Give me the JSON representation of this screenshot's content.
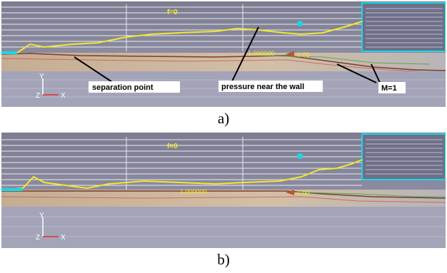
{
  "panel_a": {
    "top_marker": "f=0",
    "scale_label": "1.000000",
    "scale_label_right": "0.00",
    "axis_y": "Y",
    "axis_z": "Z",
    "axis_x": "X",
    "annotations": {
      "separation_point": "separation point",
      "pressure_near_wall": "pressure near the wall",
      "mach_line": "M=1"
    }
  },
  "panel_b": {
    "top_marker": "f=0",
    "scale_label": "1.000000",
    "scale_label_right": "0.00",
    "axis_y": "Y",
    "axis_z": "Z",
    "axis_x": "X"
  },
  "captions": {
    "a": "a)",
    "b": "b)"
  },
  "colors": {
    "sky": "#8e8ea6",
    "gridline": "#ffffff",
    "pressure_curve": "#f2e82a",
    "flow_field": "#c8b49a",
    "lower_band": "#a7a7bb",
    "cyan_accent": "#18d8e6"
  }
}
